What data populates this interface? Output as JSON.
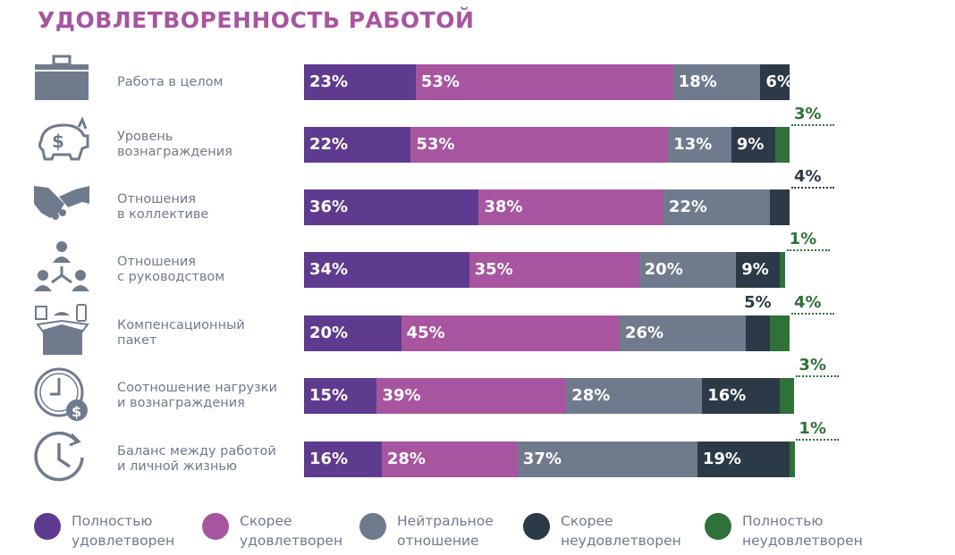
{
  "chart_data": {
    "type": "bar",
    "orientation": "horizontal-stacked-100",
    "title": "УДОВЛЕТВОРЕННОСТЬ РАБОТОЙ",
    "categories": [
      {
        "label": "Работа в целом",
        "icon": "briefcase-icon"
      },
      {
        "label": "Уровень\nвознаграждения",
        "icon": "piggy-bank-icon"
      },
      {
        "label": "Отношения\nв коллективе",
        "icon": "handshake-icon"
      },
      {
        "label": "Отношения\nс руководством",
        "icon": "hierarchy-icon"
      },
      {
        "label": "Компенсационный\nпакет",
        "icon": "benefits-box-icon"
      },
      {
        "label": "Соотношение нагрузки\nи вознаграждения",
        "icon": "clock-money-icon"
      },
      {
        "label": "Баланс между работой\nи личной жизнью",
        "icon": "clock-arrow-icon"
      }
    ],
    "series": [
      {
        "name": "Полностью\nудовлетворен",
        "color": "#5e3b8f",
        "values": [
          23,
          22,
          36,
          34,
          20,
          15,
          16
        ]
      },
      {
        "name": "Скорее\nудовлетворен",
        "color": "#a855a0",
        "values": [
          53,
          53,
          38,
          35,
          45,
          39,
          28
        ]
      },
      {
        "name": "Нейтральное\nотношение",
        "color": "#6f7b8d",
        "values": [
          18,
          13,
          22,
          20,
          26,
          28,
          37
        ]
      },
      {
        "name": "Скорее\nнеудовлетворен",
        "color": "#2b3a46",
        "values": [
          6,
          9,
          4,
          9,
          5,
          16,
          19
        ]
      },
      {
        "name": "Полностью\nнеудовлетворен",
        "color": "#2e7239",
        "values": [
          0,
          3,
          0,
          1,
          4,
          3,
          1
        ]
      }
    ],
    "unit": "%",
    "legend": "bottom"
  }
}
